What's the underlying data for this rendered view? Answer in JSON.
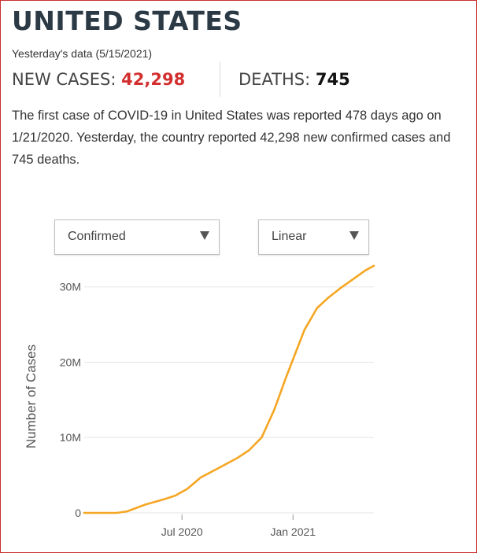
{
  "country": {
    "title": "UNITED STATES",
    "as_of": "Yesterday's data (5/15/2021)"
  },
  "stats": {
    "cases_label": "NEW CASES:",
    "cases_value": "42,298",
    "deaths_label": "DEATHS:",
    "deaths_value": "745"
  },
  "summary": {
    "prefix": "The first case of ",
    "disease": "COVID-19",
    "middle": " in United States was reported 478 days ago on 1/21/2020. Yesterday, the country reported 42,298 new confirmed cases and 745 deaths."
  },
  "controls": {
    "metric_selected": "Confirmed",
    "scale_selected": "Linear"
  },
  "colors": {
    "line": "#f5a623",
    "new_cases": "#d32f2f",
    "gridline": "#e6e6e6"
  },
  "chart_data": {
    "type": "line",
    "title": "",
    "xlabel": "",
    "ylabel": "Number of Cases",
    "y_scale": "linear",
    "ylim": [
      0,
      33000000
    ],
    "yticks": [
      0,
      10000000,
      20000000,
      30000000
    ],
    "ytick_labels": [
      "0",
      "10M",
      "20M",
      "30M"
    ],
    "xlim": [
      "2020-01-21",
      "2021-05-15"
    ],
    "xticks": [
      "2020-07-01",
      "2021-01-01"
    ],
    "xtick_labels": [
      "Jul 2020",
      "Jan 2021"
    ],
    "grid": true,
    "series": [
      {
        "name": "",
        "x": [
          "2020-01-21",
          "2020-02-20",
          "2020-03-15",
          "2020-04-01",
          "2020-05-01",
          "2020-06-01",
          "2020-06-20",
          "2020-07-10",
          "2020-08-01",
          "2020-09-01",
          "2020-10-01",
          "2020-10-20",
          "2020-11-10",
          "2020-12-01",
          "2020-12-20",
          "2021-01-05",
          "2021-01-20",
          "2021-02-10",
          "2021-03-01",
          "2021-03-20",
          "2021-04-10",
          "2021-05-01",
          "2021-05-15"
        ],
        "y": [
          0,
          15,
          3000,
          200000,
          1100000,
          1800000,
          2300000,
          3200000,
          4700000,
          6000000,
          7300000,
          8300000,
          10000000,
          13700000,
          17900000,
          21200000,
          24300000,
          27200000,
          28600000,
          29800000,
          31000000,
          32200000,
          32800000
        ]
      }
    ]
  }
}
